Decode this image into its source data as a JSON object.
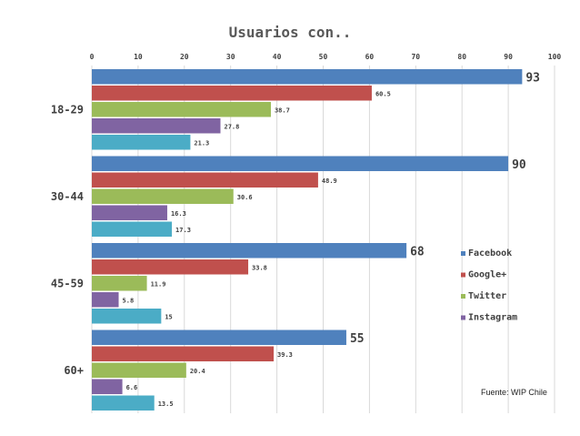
{
  "chart_data": {
    "type": "bar",
    "orientation": "horizontal",
    "title": "Usuarios con..",
    "categories": [
      "18-29",
      "30-44",
      "45-59",
      "60+"
    ],
    "series": [
      {
        "name": "Facebook",
        "color": "#4F81BD",
        "values": [
          93,
          90,
          68,
          55
        ],
        "labels": [
          "93",
          "90",
          "68",
          "55"
        ]
      },
      {
        "name": "Google+",
        "color": "#C0504D",
        "values": [
          60.5,
          48.9,
          33.8,
          39.3
        ],
        "labels": [
          "60.5",
          "48.9",
          "33.8",
          "39.3"
        ]
      },
      {
        "name": "Twitter",
        "color": "#9BBB59",
        "values": [
          38.7,
          30.6,
          11.9,
          20.4
        ],
        "labels": [
          "38.7",
          "30.6",
          "11.9",
          "20.4"
        ]
      },
      {
        "name": "Instagram",
        "color": "#8064A2",
        "values": [
          27.8,
          16.3,
          5.8,
          6.6
        ],
        "labels": [
          "27.8",
          "16.3",
          "5.8",
          "6.6"
        ]
      },
      {
        "name": "",
        "color": "#4BACC6",
        "values": [
          21.3,
          17.3,
          15,
          13.5
        ],
        "labels": [
          "21.3",
          "17.3",
          "15",
          "13.5"
        ]
      }
    ],
    "xlim": [
      0,
      100
    ],
    "xticks": [
      "0",
      "10",
      "20",
      "30",
      "40",
      "50",
      "60",
      "70",
      "80",
      "90",
      "100"
    ],
    "grid": true,
    "legend_position": "right",
    "source": "Fuente: WIP Chile"
  }
}
